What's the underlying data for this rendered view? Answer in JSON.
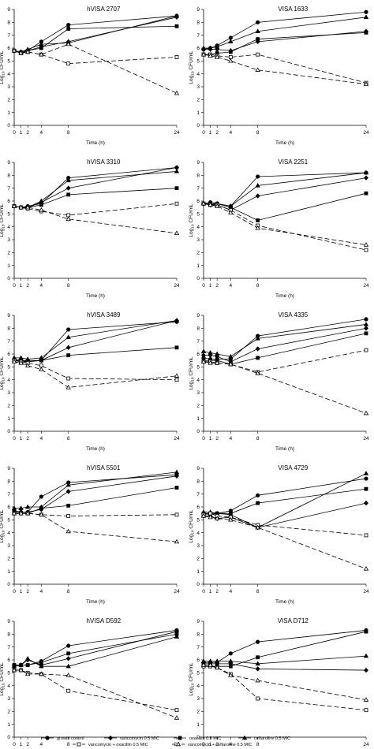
{
  "figure": {
    "xlabel": "Time (h)",
    "ylabel_main": "Log",
    "ylabel_sub": "10",
    "ylabel_unit": "CFU/mL",
    "x_ticks": [
      "0",
      "1",
      "2",
      "4",
      "8",
      "24"
    ],
    "y_ticks": [
      "0",
      "1",
      "2",
      "3",
      "4",
      "5",
      "6",
      "7",
      "8",
      "9"
    ]
  },
  "legend": [
    {
      "label": "growth control",
      "marker": "circle",
      "filled": true,
      "dashed": false
    },
    {
      "label": "vancomycin 0.5 MIC",
      "marker": "diamond",
      "filled": true,
      "dashed": false
    },
    {
      "label": "oxacillin 0.5 MIC",
      "marker": "square",
      "filled": true,
      "dashed": false
    },
    {
      "label": "ceftaroline 0.5 MIC",
      "marker": "triangle",
      "filled": true,
      "dashed": false
    },
    {
      "label": "vancomycin + oxacillin 0.5 MIC",
      "marker": "square",
      "filled": false,
      "dashed": true
    },
    {
      "label": "vancomycin + ceftaroline 0.5 MIC",
      "marker": "triangle",
      "filled": false,
      "dashed": true
    }
  ],
  "chart_data": [
    {
      "type": "line",
      "title": "hVISA 2707",
      "x": [
        0,
        1,
        2,
        4,
        8,
        24
      ],
      "xlim": [
        0,
        24
      ],
      "ylim": [
        0,
        9
      ],
      "series": [
        {
          "name": "growth control",
          "values": [
            5.8,
            5.7,
            5.8,
            6.5,
            7.8,
            8.5
          ]
        },
        {
          "name": "vancomycin 0.5 MIC",
          "values": [
            5.8,
            5.7,
            5.8,
            6.1,
            6.5,
            8.4
          ]
        },
        {
          "name": "oxacillin 0.5 MIC",
          "values": [
            5.8,
            5.6,
            5.8,
            6.0,
            7.5,
            7.7
          ]
        },
        {
          "name": "ceftaroline 0.5 MIC",
          "values": [
            5.8,
            5.7,
            5.9,
            6.3,
            6.4,
            8.5
          ]
        },
        {
          "name": "vancomycin + oxacillin 0.5 MIC",
          "values": [
            5.8,
            5.6,
            5.7,
            5.5,
            4.8,
            5.3
          ]
        },
        {
          "name": "vancomycin + ceftaroline 0.5 MIC",
          "values": [
            5.8,
            5.6,
            5.7,
            5.5,
            6.3,
            2.5
          ]
        }
      ]
    },
    {
      "type": "line",
      "title": "VISA 1633",
      "x": [
        0,
        1,
        2,
        4,
        8,
        24
      ],
      "xlim": [
        0,
        24
      ],
      "ylim": [
        0,
        9
      ],
      "series": [
        {
          "name": "growth control",
          "values": [
            5.9,
            6.0,
            6.2,
            6.8,
            8.0,
            8.8
          ]
        },
        {
          "name": "vancomycin 0.5 MIC",
          "values": [
            5.9,
            5.9,
            5.9,
            5.8,
            6.5,
            7.3
          ]
        },
        {
          "name": "oxacillin 0.5 MIC",
          "values": [
            5.5,
            5.5,
            5.6,
            5.7,
            6.7,
            7.2
          ]
        },
        {
          "name": "ceftaroline 0.5 MIC",
          "values": [
            6.0,
            6.0,
            6.1,
            6.5,
            7.3,
            8.4
          ]
        },
        {
          "name": "vancomycin + oxacillin 0.5 MIC",
          "values": [
            5.5,
            5.5,
            5.4,
            5.3,
            5.5,
            3.3
          ]
        },
        {
          "name": "vancomycin + ceftaroline 0.5 MIC",
          "values": [
            5.5,
            5.4,
            5.3,
            5.0,
            4.3,
            3.2
          ]
        }
      ]
    },
    {
      "type": "line",
      "title": "hVISA 3310",
      "x": [
        0,
        1,
        2,
        4,
        8,
        24
      ],
      "xlim": [
        0,
        24
      ],
      "ylim": [
        0,
        9
      ],
      "series": [
        {
          "name": "growth control",
          "values": [
            5.6,
            5.5,
            5.6,
            5.8,
            7.8,
            8.6
          ]
        },
        {
          "name": "vancomycin 0.5 MIC",
          "values": [
            5.6,
            5.5,
            5.5,
            5.9,
            7.0,
            8.6
          ]
        },
        {
          "name": "oxacillin 0.5 MIC",
          "values": [
            5.6,
            5.5,
            5.5,
            5.7,
            6.5,
            7.0
          ]
        },
        {
          "name": "ceftaroline 0.5 MIC",
          "values": [
            5.6,
            5.5,
            5.5,
            6.0,
            7.6,
            8.3
          ]
        },
        {
          "name": "vancomycin + oxacillin 0.5 MIC",
          "values": [
            5.6,
            5.5,
            5.4,
            5.2,
            4.9,
            5.8
          ]
        },
        {
          "name": "vancomycin + ceftaroline 0.5 MIC",
          "values": [
            5.6,
            5.5,
            5.5,
            5.3,
            4.6,
            3.5
          ]
        }
      ]
    },
    {
      "type": "line",
      "title": "VISA 2251",
      "x": [
        0,
        1,
        2,
        4,
        8,
        24
      ],
      "xlim": [
        0,
        24
      ],
      "ylim": [
        0,
        9
      ],
      "series": [
        {
          "name": "growth control",
          "values": [
            5.8,
            5.9,
            5.8,
            5.6,
            7.9,
            8.2
          ]
        },
        {
          "name": "vancomycin 0.5 MIC",
          "values": [
            5.8,
            5.7,
            5.7,
            5.3,
            6.4,
            7.8
          ]
        },
        {
          "name": "oxacillin 0.5 MIC",
          "values": [
            5.8,
            5.7,
            5.8,
            5.5,
            4.5,
            6.6
          ]
        },
        {
          "name": "ceftaroline 0.5 MIC",
          "values": [
            5.8,
            5.8,
            5.8,
            5.6,
            7.2,
            8.2
          ]
        },
        {
          "name": "vancomycin + oxacillin 0.5 MIC",
          "values": [
            5.8,
            5.7,
            5.7,
            5.3,
            4.1,
            2.2
          ]
        },
        {
          "name": "vancomycin + ceftaroline 0.5 MIC",
          "values": [
            5.8,
            5.7,
            5.6,
            5.1,
            3.9,
            2.6
          ]
        }
      ]
    },
    {
      "type": "line",
      "title": "hVISA 3489",
      "x": [
        0,
        1,
        2,
        4,
        8,
        24
      ],
      "xlim": [
        0,
        24
      ],
      "ylim": [
        0,
        9
      ],
      "series": [
        {
          "name": "growth control",
          "values": [
            5.5,
            5.5,
            5.4,
            5.5,
            7.9,
            8.5
          ]
        },
        {
          "name": "vancomycin 0.5 MIC",
          "values": [
            5.6,
            5.5,
            5.5,
            5.5,
            6.5,
            8.6
          ]
        },
        {
          "name": "oxacillin 0.5 MIC",
          "values": [
            5.5,
            5.4,
            5.4,
            5.5,
            5.9,
            6.5
          ]
        },
        {
          "name": "ceftaroline 0.5 MIC",
          "values": [
            5.7,
            5.7,
            5.6,
            5.7,
            7.3,
            8.6
          ]
        },
        {
          "name": "vancomycin + oxacillin 0.5 MIC",
          "values": [
            5.5,
            5.4,
            5.3,
            5.1,
            4.1,
            4.0
          ]
        },
        {
          "name": "vancomycin + ceftaroline 0.5 MIC",
          "values": [
            5.4,
            5.3,
            5.1,
            4.8,
            3.4,
            4.3
          ]
        }
      ]
    },
    {
      "type": "line",
      "title": "VISA 4335",
      "x": [
        0,
        1,
        2,
        4,
        8,
        24
      ],
      "xlim": [
        0,
        24
      ],
      "ylim": [
        0,
        9
      ],
      "series": [
        {
          "name": "growth control",
          "values": [
            5.7,
            5.6,
            5.6,
            5.6,
            7.4,
            8.7
          ]
        },
        {
          "name": "vancomycin 0.5 MIC",
          "values": [
            5.9,
            5.9,
            5.8,
            5.4,
            6.4,
            8.0
          ]
        },
        {
          "name": "oxacillin 0.5 MIC",
          "values": [
            5.5,
            5.5,
            5.5,
            5.2,
            5.7,
            7.6
          ]
        },
        {
          "name": "ceftaroline 0.5 MIC",
          "values": [
            6.2,
            6.1,
            6.0,
            5.8,
            7.2,
            8.3
          ]
        },
        {
          "name": "vancomycin + oxacillin 0.5 MIC",
          "values": [
            5.4,
            5.4,
            5.3,
            5.2,
            4.6,
            6.3
          ]
        },
        {
          "name": "vancomycin + ceftaroline 0.5 MIC",
          "values": [
            5.4,
            5.3,
            5.3,
            5.2,
            4.5,
            1.4
          ]
        }
      ]
    },
    {
      "type": "line",
      "title": "hVISA 5501",
      "x": [
        0,
        1,
        2,
        4,
        8,
        24
      ],
      "xlim": [
        0,
        24
      ],
      "ylim": [
        0,
        9
      ],
      "series": [
        {
          "name": "growth control",
          "values": [
            5.6,
            5.6,
            5.6,
            6.8,
            7.9,
            8.5
          ]
        },
        {
          "name": "vancomycin 0.5 MIC",
          "values": [
            5.7,
            5.6,
            5.6,
            5.8,
            7.2,
            8.4
          ]
        },
        {
          "name": "oxacillin 0.5 MIC",
          "values": [
            5.5,
            5.5,
            5.5,
            5.9,
            6.1,
            7.5
          ]
        },
        {
          "name": "ceftaroline 0.5 MIC",
          "values": [
            5.9,
            5.9,
            6.0,
            6.0,
            7.7,
            8.7
          ]
        },
        {
          "name": "vancomycin + oxacillin 0.5 MIC",
          "values": [
            5.5,
            5.5,
            5.5,
            5.4,
            5.3,
            5.4
          ]
        },
        {
          "name": "vancomycin + ceftaroline 0.5 MIC",
          "values": [
            5.5,
            5.5,
            5.5,
            5.4,
            4.1,
            3.3
          ]
        }
      ]
    },
    {
      "type": "line",
      "title": "VISA 4729",
      "x": [
        0,
        1,
        2,
        4,
        8,
        24
      ],
      "xlim": [
        0,
        24
      ],
      "ylim": [
        0,
        9
      ],
      "series": [
        {
          "name": "growth control",
          "values": [
            5.5,
            5.5,
            5.5,
            5.7,
            6.9,
            8.2
          ]
        },
        {
          "name": "vancomycin 0.5 MIC",
          "values": [
            5.3,
            5.3,
            5.1,
            5.2,
            4.4,
            6.3
          ]
        },
        {
          "name": "oxacillin 0.5 MIC",
          "values": [
            5.5,
            5.4,
            5.5,
            5.5,
            6.3,
            7.4
          ]
        },
        {
          "name": "ceftaroline 0.5 MIC",
          "values": [
            5.6,
            5.6,
            5.5,
            5.4,
            4.4,
            8.6
          ]
        },
        {
          "name": "vancomycin + oxacillin 0.5 MIC",
          "values": [
            5.4,
            5.5,
            5.3,
            5.2,
            4.6,
            3.8
          ]
        },
        {
          "name": "vancomycin + ceftaroline 0.5 MIC",
          "values": [
            5.3,
            5.2,
            5.1,
            5.0,
            4.4,
            1.2
          ]
        }
      ]
    },
    {
      "type": "line",
      "title": "hVISA D592",
      "x": [
        0,
        1,
        2,
        4,
        8,
        24
      ],
      "xlim": [
        0,
        24
      ],
      "ylim": [
        0,
        9
      ],
      "series": [
        {
          "name": "growth control",
          "values": [
            5.5,
            5.6,
            5.6,
            5.9,
            7.1,
            8.3
          ]
        },
        {
          "name": "vancomycin 0.5 MIC",
          "values": [
            5.6,
            5.6,
            6.0,
            5.6,
            6.1,
            8.2
          ]
        },
        {
          "name": "oxacillin 0.5 MIC",
          "values": [
            5.6,
            5.6,
            5.6,
            5.8,
            6.5,
            8.0
          ]
        },
        {
          "name": "ceftaroline 0.5 MIC",
          "values": [
            5.5,
            5.6,
            6.1,
            5.5,
            5.5,
            7.8
          ]
        },
        {
          "name": "vancomycin + oxacillin 0.5 MIC",
          "values": [
            5.2,
            5.2,
            5.0,
            4.9,
            3.6,
            2.1
          ]
        },
        {
          "name": "vancomycin + ceftaroline 0.5 MIC",
          "values": [
            5.2,
            5.2,
            4.9,
            4.9,
            4.8,
            1.5
          ]
        }
      ]
    },
    {
      "type": "line",
      "title": "VISA D712",
      "x": [
        0,
        1,
        2,
        4,
        8,
        24
      ],
      "xlim": [
        0,
        24
      ],
      "ylim": [
        0,
        9
      ],
      "series": [
        {
          "name": "growth control",
          "values": [
            5.8,
            5.8,
            5.8,
            6.5,
            7.4,
            8.3
          ]
        },
        {
          "name": "vancomycin 0.5 MIC",
          "values": [
            5.7,
            5.7,
            5.7,
            5.7,
            5.3,
            5.2
          ]
        },
        {
          "name": "oxacillin 0.5 MIC",
          "values": [
            5.5,
            5.5,
            5.5,
            5.5,
            6.2,
            8.2
          ]
        },
        {
          "name": "ceftaroline 0.5 MIC",
          "values": [
            5.9,
            5.9,
            5.9,
            5.9,
            5.7,
            6.3
          ]
        },
        {
          "name": "vancomycin + oxacillin 0.5 MIC",
          "values": [
            5.5,
            5.5,
            5.4,
            4.9,
            3.0,
            2.1
          ]
        },
        {
          "name": "vancomycin + ceftaroline 0.5 MIC",
          "values": [
            5.6,
            5.6,
            5.4,
            4.8,
            4.4,
            2.9
          ]
        }
      ]
    }
  ]
}
